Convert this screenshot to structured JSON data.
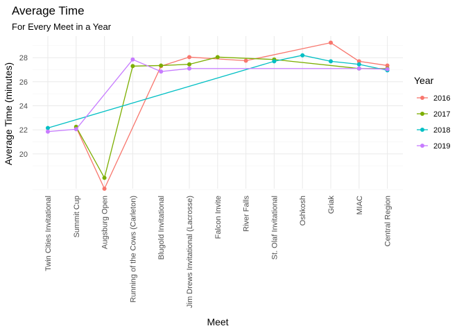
{
  "chart_data": {
    "type": "line",
    "title": "Average Time",
    "subtitle": "For Every Meet in a Year",
    "xlabel": "Meet",
    "ylabel": "Average Time (minutes)",
    "categories": [
      "Twin Cities Invitational",
      "Summit Cup",
      "Augsburg Open",
      "Running of the Cows (Carleton)",
      "Blugold Invitational",
      "Jim Drews Invitational (Lacrosse)",
      "Falcon Invite",
      "River Falls",
      "St. Olaf Invitational",
      "Oshkosh",
      "Griak",
      "MIAC",
      "Central Region"
    ],
    "yticks": [
      20,
      22,
      24,
      26,
      28
    ],
    "ylim": [
      17.1,
      29.8
    ],
    "grid": true,
    "legend": {
      "title": "Year",
      "position": "right"
    },
    "series": [
      {
        "name": "2016",
        "color": "#F8766D",
        "values": [
          null,
          22.2,
          17.1,
          null,
          27.3,
          28.05,
          null,
          27.75,
          null,
          null,
          29.25,
          27.7,
          27.35
        ]
      },
      {
        "name": "2017",
        "color": "#7CAE00",
        "values": [
          null,
          22.25,
          18.0,
          27.3,
          27.35,
          27.45,
          28.05,
          null,
          27.85,
          null,
          null,
          27.1,
          27.1
        ]
      },
      {
        "name": "2018",
        "color": "#00BFC4",
        "values": [
          22.15,
          null,
          null,
          null,
          null,
          null,
          null,
          null,
          27.7,
          28.2,
          27.7,
          27.45,
          26.95
        ]
      },
      {
        "name": "2019",
        "color": "#C77CFF",
        "values": [
          21.85,
          22.05,
          null,
          27.85,
          26.85,
          27.1,
          null,
          null,
          null,
          null,
          null,
          27.1,
          27.05
        ]
      }
    ]
  }
}
